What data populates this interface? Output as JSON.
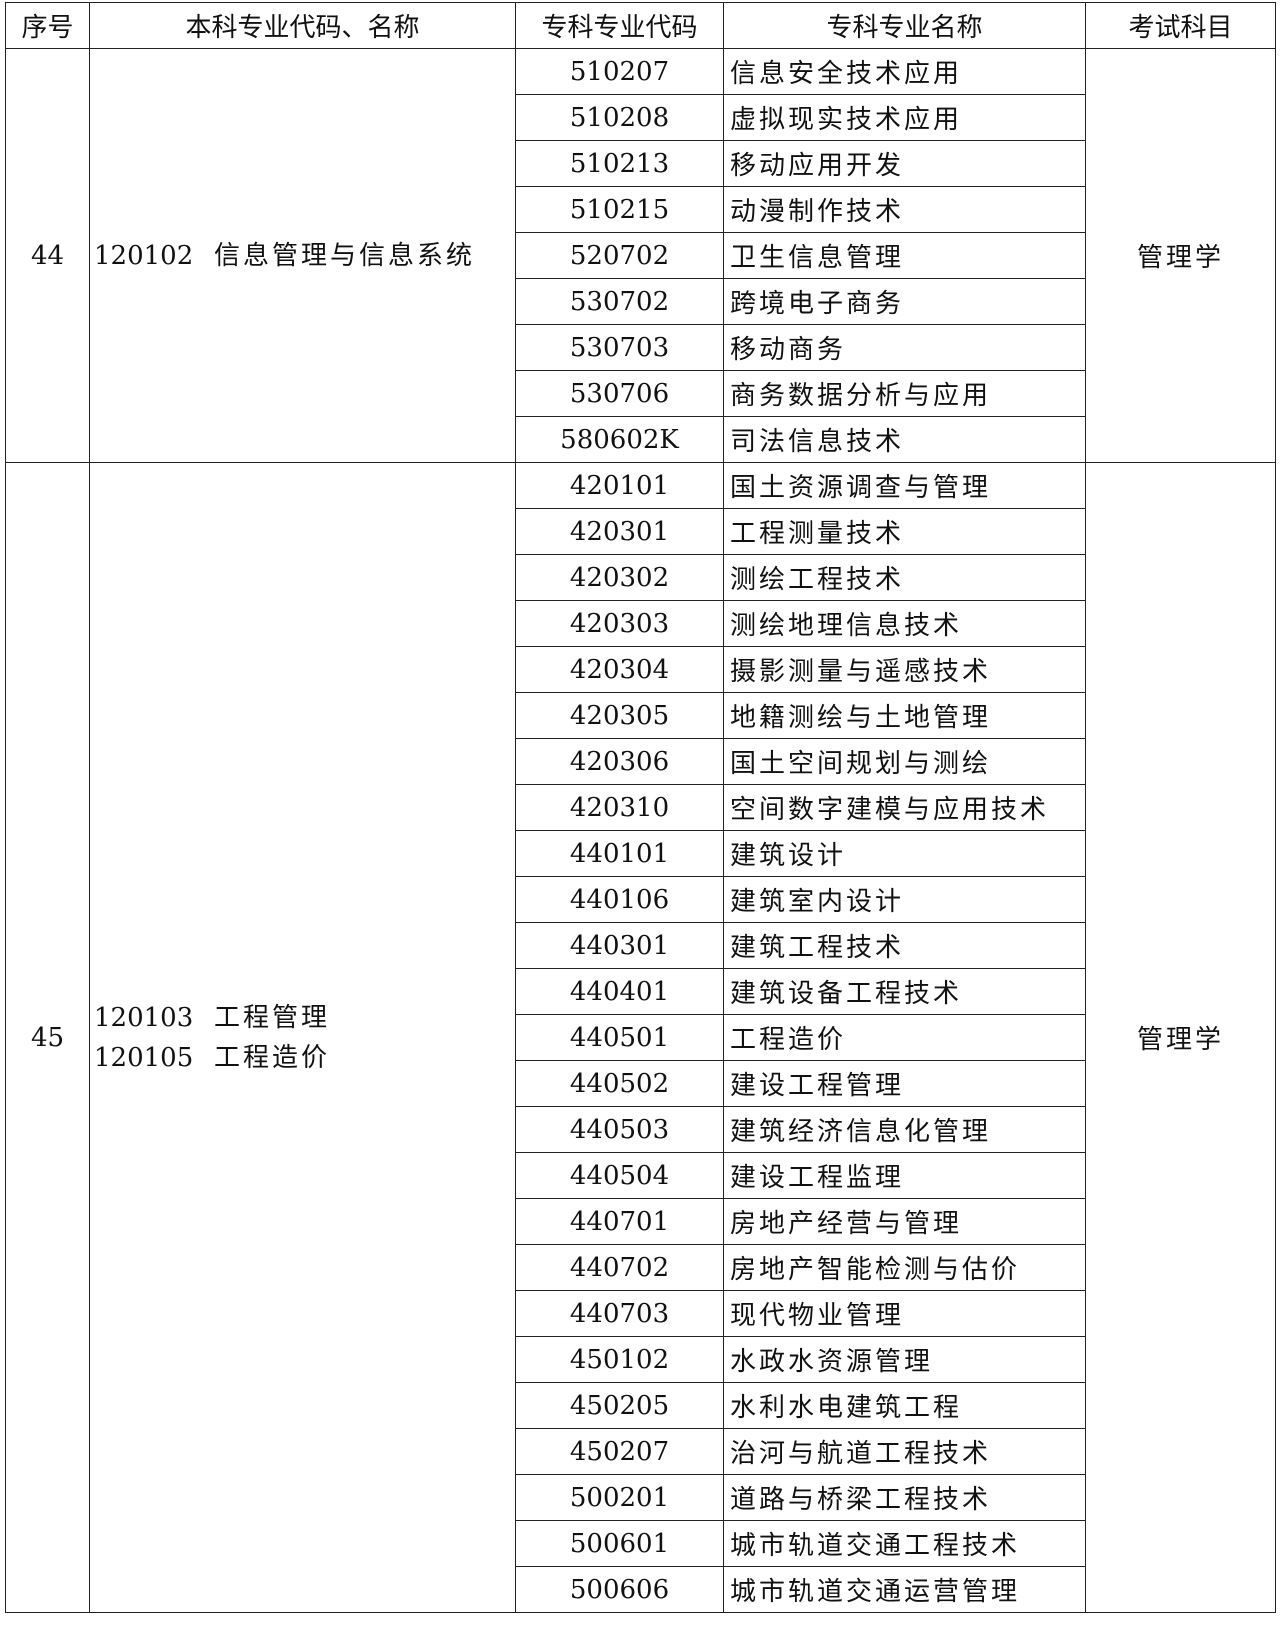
{
  "table": {
    "header": [
      "序号",
      "本科专业代码、名称",
      "专科专业代码",
      "专科专业名称",
      "考试科目"
    ],
    "groups": [
      {
        "no": "44",
        "majors": [
          {
            "code": "120102",
            "name": "信息管理与信息系统"
          }
        ],
        "subject": "管理学",
        "rows": [
          [
            "510207",
            "信息安全技术应用"
          ],
          [
            "510208",
            "虚拟现实技术应用"
          ],
          [
            "510213",
            "移动应用开发"
          ],
          [
            "510215",
            "动漫制作技术"
          ],
          [
            "520702",
            "卫生信息管理"
          ],
          [
            "530702",
            "跨境电子商务"
          ],
          [
            "530703",
            "移动商务"
          ],
          [
            "530706",
            "商务数据分析与应用"
          ],
          [
            "580602K",
            "司法信息技术"
          ]
        ]
      },
      {
        "no": "45",
        "majors": [
          {
            "code": "120103",
            "name": "工程管理"
          },
          {
            "code": "120105",
            "name": "工程造价"
          }
        ],
        "subject": "管理学",
        "rows": [
          [
            "420101",
            "国土资源调查与管理"
          ],
          [
            "420301",
            "工程测量技术"
          ],
          [
            "420302",
            "测绘工程技术"
          ],
          [
            "420303",
            "测绘地理信息技术"
          ],
          [
            "420304",
            "摄影测量与遥感技术"
          ],
          [
            "420305",
            "地籍测绘与土地管理"
          ],
          [
            "420306",
            "国土空间规划与测绘"
          ],
          [
            "420310",
            "空间数字建模与应用技术"
          ],
          [
            "440101",
            "建筑设计"
          ],
          [
            "440106",
            "建筑室内设计"
          ],
          [
            "440301",
            "建筑工程技术"
          ],
          [
            "440401",
            "建筑设备工程技术"
          ],
          [
            "440501",
            "工程造价"
          ],
          [
            "440502",
            "建设工程管理"
          ],
          [
            "440503",
            "建筑经济信息化管理"
          ],
          [
            "440504",
            "建设工程监理"
          ],
          [
            "440701",
            "房地产经营与管理"
          ],
          [
            "440702",
            "房地产智能检测与估价"
          ],
          [
            "440703",
            "现代物业管理"
          ],
          [
            "450102",
            "水政水资源管理"
          ],
          [
            "450205",
            "水利水电建筑工程"
          ],
          [
            "450207",
            "治河与航道工程技术"
          ],
          [
            "500201",
            "道路与桥梁工程技术"
          ],
          [
            "500601",
            "城市轨道交通工程技术"
          ],
          [
            "500606",
            "城市轨道交通运营管理"
          ]
        ]
      }
    ]
  }
}
